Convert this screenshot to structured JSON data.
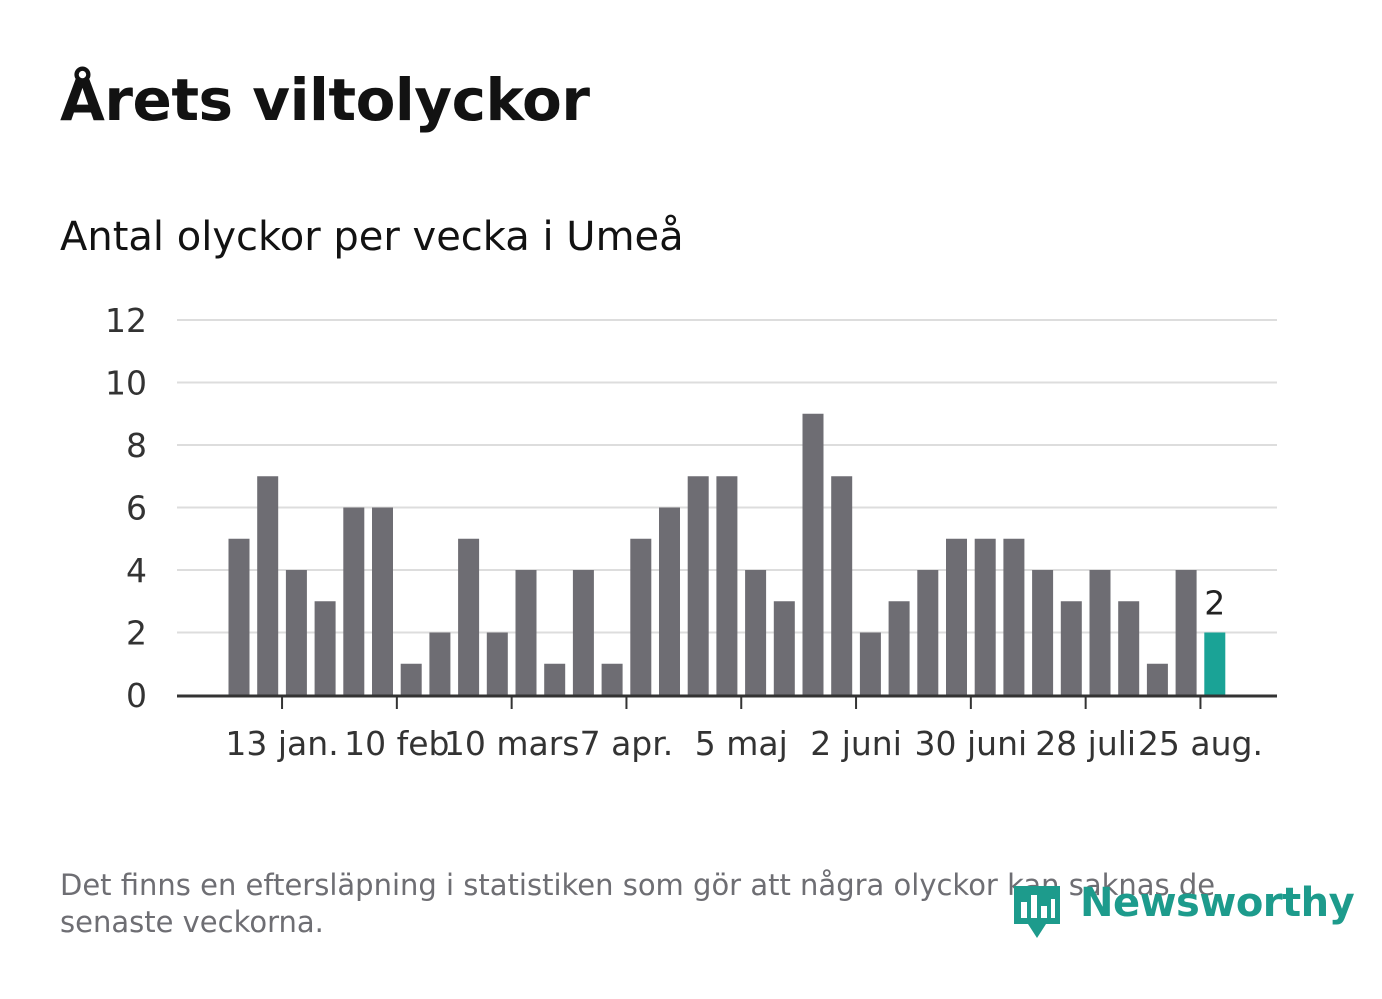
{
  "header": {
    "title": "Årets viltolyckor",
    "subtitle": "Antal olyckor per vecka i Umeå"
  },
  "footnote": "Det finns en eftersläpning i statistiken som gör att några olyckor kan saknas de senaste veckorna.",
  "logo": {
    "text": "Newsworthy",
    "icon": "newsworthy-logo-icon"
  },
  "colors": {
    "bar": "#6e6d73",
    "highlight": "#1aa396",
    "grid": "#dddddd",
    "axis": "#333333",
    "logo": "#1d9b8c"
  },
  "chart_data": {
    "type": "bar",
    "title": "Antal olyckor per vecka i Umeå",
    "xlabel": "",
    "ylabel": "",
    "ylim": [
      0,
      12
    ],
    "yticks": [
      0,
      2,
      4,
      6,
      8,
      10,
      12
    ],
    "grid": true,
    "legend": "none",
    "values": [
      5,
      7,
      4,
      3,
      6,
      6,
      1,
      2,
      5,
      2,
      4,
      1,
      4,
      1,
      5,
      6,
      7,
      7,
      4,
      3,
      9,
      7,
      2,
      3,
      4,
      5,
      5,
      5,
      4,
      3,
      4,
      3,
      1,
      4,
      2
    ],
    "xtick_labels": [
      {
        "bar_index": 1.5,
        "label": "13 jan."
      },
      {
        "bar_index": 5.5,
        "label": "10 feb"
      },
      {
        "bar_index": 9.5,
        "label": "10 mars"
      },
      {
        "bar_index": 13.5,
        "label": "7 apr."
      },
      {
        "bar_index": 17.5,
        "label": "5 maj"
      },
      {
        "bar_index": 21.5,
        "label": "2 juni"
      },
      {
        "bar_index": 25.5,
        "label": "30 juni"
      },
      {
        "bar_index": 29.5,
        "label": "28 juli"
      },
      {
        "bar_index": 33.5,
        "label": "25 aug."
      }
    ],
    "highlight_index": 34,
    "data_labels": [
      {
        "bar_index": 34,
        "text": "2"
      }
    ]
  }
}
